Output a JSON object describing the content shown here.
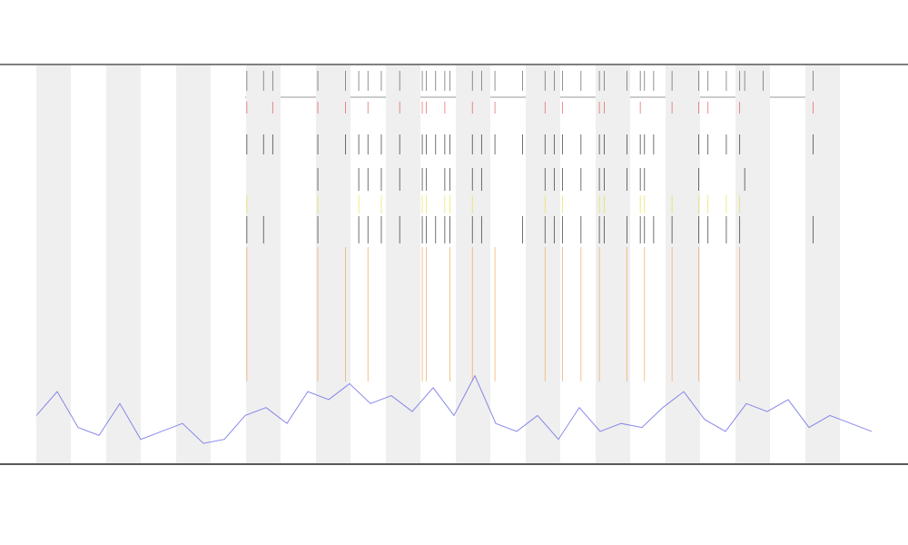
{
  "chart_data": {
    "type": "line",
    "xlim": [
      0,
      100
    ],
    "ylim": [
      0,
      100
    ],
    "series": [
      {
        "color": "#6b6be6",
        "x": [
          0,
          2.5,
          5,
          7.5,
          10,
          12.5,
          15,
          17.5,
          20,
          22.5,
          25,
          27.5,
          30,
          32.5,
          35,
          37.5,
          40,
          42.5,
          45,
          47.5,
          50,
          52.5,
          55,
          57.5,
          60,
          62.5,
          65,
          67.5,
          70,
          72.5,
          75,
          77.5,
          80,
          82.5,
          85,
          87.5,
          90,
          92.5,
          95,
          97.5,
          100
        ],
        "values": [
          12,
          18,
          9,
          7,
          15,
          6,
          8,
          10,
          5,
          6,
          12,
          14,
          10,
          18,
          16,
          20,
          15,
          17,
          13,
          19,
          12,
          22,
          10,
          8,
          12,
          6,
          14,
          8,
          10,
          9,
          14,
          18,
          11,
          8,
          15,
          13,
          16,
          9,
          12,
          10,
          8
        ]
      }
    ],
    "tracks": [
      {
        "color": "#555555",
        "x": [
          25.2,
          27.2,
          28.3,
          33.7,
          37,
          38.6,
          39.7,
          41.3,
          43.5,
          46.2,
          46.7,
          47.8,
          48.9,
          49.5,
          52.2,
          53.3,
          54.9,
          58.2,
          60.9,
          62,
          63,
          65.2,
          67.4,
          68,
          70.7,
          72.3,
          72.8,
          73.9,
          76.1,
          79.3,
          80.4,
          82.6,
          84.2,
          84.8,
          87,
          93
        ]
      },
      {
        "color": "#e05050",
        "x": [
          25.2,
          28.3,
          33.7,
          37,
          39.7,
          43.5,
          46.2,
          46.7,
          48.9,
          52.2,
          54.9,
          60.9,
          63,
          67.4,
          68,
          72.3,
          76.1,
          79.3,
          80.4,
          84.2,
          93
        ]
      },
      {
        "color": "#222222",
        "x": [
          25.2,
          27.2,
          28.3,
          33.7,
          37,
          38.6,
          39.7,
          41.3,
          43.5,
          46.2,
          46.7,
          47.8,
          48.9,
          49.5,
          52.2,
          53.3,
          54.9,
          58.2,
          60.9,
          62,
          63,
          65.2,
          67.4,
          68,
          70.7,
          72.3,
          72.8,
          73.9,
          79.3,
          80.4,
          82.6,
          84.2,
          93
        ]
      },
      {
        "color": "#222222",
        "x": [
          33.7,
          38.6,
          39.7,
          41.3,
          43.5,
          46.2,
          46.7,
          48.9,
          49.5,
          52.2,
          53.3,
          60.9,
          62,
          63,
          65.2,
          67.4,
          68,
          70.7,
          72.3,
          72.8,
          79.3,
          84.8
        ]
      },
      {
        "color": "#e8e040",
        "x": [
          25.2,
          33.7,
          38.6,
          41.3,
          46.2,
          46.7,
          48.9,
          49.5,
          52.2,
          60.9,
          63,
          67.4,
          68,
          72.3,
          72.8,
          76.1,
          79.3,
          80.4,
          82.6,
          84.2
        ]
      },
      {
        "color": "#222222",
        "x": [
          25.2,
          27.2,
          33.7,
          38.6,
          39.7,
          41.3,
          43.5,
          46.2,
          46.7,
          47.8,
          48.9,
          49.5,
          52.2,
          53.3,
          58.2,
          60.9,
          62,
          63,
          65.2,
          67.4,
          68,
          70.7,
          72.3,
          72.8,
          73.9,
          76.1,
          79.3,
          80.4,
          82.6,
          84.2,
          93
        ]
      },
      {
        "color": "#f0a050",
        "x": [
          25.2,
          33.7,
          37,
          39.7,
          46.2,
          46.7,
          49.5,
          52.2,
          54.9,
          60.9,
          63,
          65.2,
          67.4,
          70.7,
          72.8,
          76.1,
          79.3,
          84.2
        ]
      }
    ]
  }
}
